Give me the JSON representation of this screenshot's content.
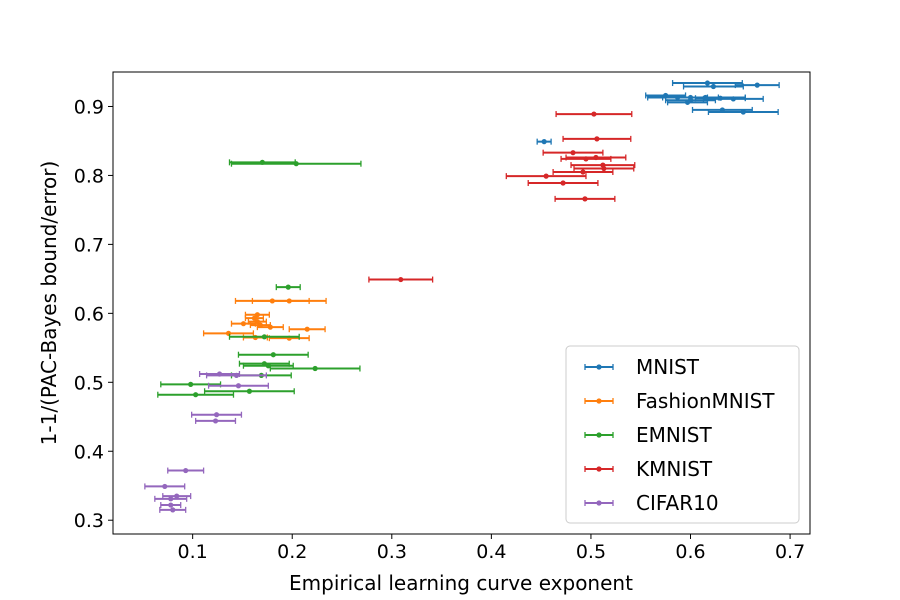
{
  "chart_data": {
    "type": "scatter",
    "xlabel": "Empirical learning curve exponent",
    "ylabel": "1-1/(PAC-Bayes bound/error)",
    "xlim": [
      0.02,
      0.72
    ],
    "ylim": [
      0.28,
      0.95
    ],
    "xticks": [
      "0.1",
      "0.2",
      "0.3",
      "0.4",
      "0.5",
      "0.6",
      "0.7"
    ],
    "yticks": [
      "0.3",
      "0.4",
      "0.5",
      "0.6",
      "0.7",
      "0.8",
      "0.9"
    ],
    "legend_position": "lower-right",
    "grid": false,
    "series": [
      {
        "name": "MNIST",
        "color": "#1f77b4",
        "points": [
          {
            "x": 0.453,
            "y": 0.849,
            "xerr": 0.007
          },
          {
            "x": 0.617,
            "y": 0.934,
            "xerr": 0.035
          },
          {
            "x": 0.667,
            "y": 0.931,
            "xerr": 0.022
          },
          {
            "x": 0.623,
            "y": 0.929,
            "xerr": 0.03
          },
          {
            "x": 0.575,
            "y": 0.916,
            "xerr": 0.02
          },
          {
            "x": 0.587,
            "y": 0.913,
            "xerr": 0.03
          },
          {
            "x": 0.6,
            "y": 0.913,
            "xerr": 0.028
          },
          {
            "x": 0.615,
            "y": 0.913,
            "xerr": 0.04
          },
          {
            "x": 0.63,
            "y": 0.912,
            "xerr": 0.025
          },
          {
            "x": 0.643,
            "y": 0.911,
            "xerr": 0.03
          },
          {
            "x": 0.6,
            "y": 0.909,
            "xerr": 0.025
          },
          {
            "x": 0.597,
            "y": 0.906,
            "xerr": 0.02
          },
          {
            "x": 0.632,
            "y": 0.895,
            "xerr": 0.03
          },
          {
            "x": 0.653,
            "y": 0.892,
            "xerr": 0.035
          }
        ]
      },
      {
        "name": "FashionMNIST",
        "color": "#ff7f0e",
        "points": [
          {
            "x": 0.18,
            "y": 0.618,
            "xerr": 0.037
          },
          {
            "x": 0.197,
            "y": 0.618,
            "xerr": 0.037
          },
          {
            "x": 0.165,
            "y": 0.598,
            "xerr": 0.012
          },
          {
            "x": 0.162,
            "y": 0.593,
            "xerr": 0.009
          },
          {
            "x": 0.165,
            "y": 0.588,
            "xerr": 0.009
          },
          {
            "x": 0.151,
            "y": 0.585,
            "xerr": 0.012
          },
          {
            "x": 0.168,
            "y": 0.583,
            "xerr": 0.01
          },
          {
            "x": 0.178,
            "y": 0.58,
            "xerr": 0.013
          },
          {
            "x": 0.215,
            "y": 0.577,
            "xerr": 0.018
          },
          {
            "x": 0.136,
            "y": 0.571,
            "xerr": 0.025
          },
          {
            "x": 0.163,
            "y": 0.565,
            "xerr": 0.012
          },
          {
            "x": 0.197,
            "y": 0.564,
            "xerr": 0.02
          }
        ]
      },
      {
        "name": "EMNIST",
        "color": "#2ca02c",
        "points": [
          {
            "x": 0.17,
            "y": 0.819,
            "xerr": 0.033
          },
          {
            "x": 0.204,
            "y": 0.817,
            "xerr": 0.065
          },
          {
            "x": 0.196,
            "y": 0.638,
            "xerr": 0.012
          },
          {
            "x": 0.172,
            "y": 0.566,
            "xerr": 0.035
          },
          {
            "x": 0.181,
            "y": 0.54,
            "xerr": 0.035
          },
          {
            "x": 0.223,
            "y": 0.52,
            "xerr": 0.045
          },
          {
            "x": 0.172,
            "y": 0.527,
            "xerr": 0.025
          },
          {
            "x": 0.176,
            "y": 0.524,
            "xerr": 0.025
          },
          {
            "x": 0.169,
            "y": 0.51,
            "xerr": 0.03
          },
          {
            "x": 0.098,
            "y": 0.497,
            "xerr": 0.03
          },
          {
            "x": 0.157,
            "y": 0.487,
            "xerr": 0.045
          },
          {
            "x": 0.103,
            "y": 0.482,
            "xerr": 0.038
          }
        ]
      },
      {
        "name": "KMNIST",
        "color": "#d62728",
        "points": [
          {
            "x": 0.503,
            "y": 0.889,
            "xerr": 0.038
          },
          {
            "x": 0.506,
            "y": 0.853,
            "xerr": 0.034
          },
          {
            "x": 0.482,
            "y": 0.833,
            "xerr": 0.03
          },
          {
            "x": 0.495,
            "y": 0.824,
            "xerr": 0.025
          },
          {
            "x": 0.505,
            "y": 0.826,
            "xerr": 0.03
          },
          {
            "x": 0.512,
            "y": 0.815,
            "xerr": 0.032
          },
          {
            "x": 0.513,
            "y": 0.81,
            "xerr": 0.03
          },
          {
            "x": 0.492,
            "y": 0.805,
            "xerr": 0.03
          },
          {
            "x": 0.455,
            "y": 0.799,
            "xerr": 0.04
          },
          {
            "x": 0.472,
            "y": 0.789,
            "xerr": 0.035
          },
          {
            "x": 0.494,
            "y": 0.766,
            "xerr": 0.03
          },
          {
            "x": 0.309,
            "y": 0.649,
            "xerr": 0.032
          }
        ]
      },
      {
        "name": "CIFAR10",
        "color": "#9467bd",
        "points": [
          {
            "x": 0.127,
            "y": 0.512,
            "xerr": 0.02
          },
          {
            "x": 0.144,
            "y": 0.51,
            "xerr": 0.03
          },
          {
            "x": 0.146,
            "y": 0.495,
            "xerr": 0.03
          },
          {
            "x": 0.124,
            "y": 0.453,
            "xerr": 0.025
          },
          {
            "x": 0.123,
            "y": 0.444,
            "xerr": 0.02
          },
          {
            "x": 0.093,
            "y": 0.372,
            "xerr": 0.018
          },
          {
            "x": 0.072,
            "y": 0.349,
            "xerr": 0.02
          },
          {
            "x": 0.084,
            "y": 0.335,
            "xerr": 0.014
          },
          {
            "x": 0.078,
            "y": 0.331,
            "xerr": 0.016
          },
          {
            "x": 0.078,
            "y": 0.322,
            "xerr": 0.01
          },
          {
            "x": 0.08,
            "y": 0.315,
            "xerr": 0.013
          }
        ]
      }
    ]
  }
}
